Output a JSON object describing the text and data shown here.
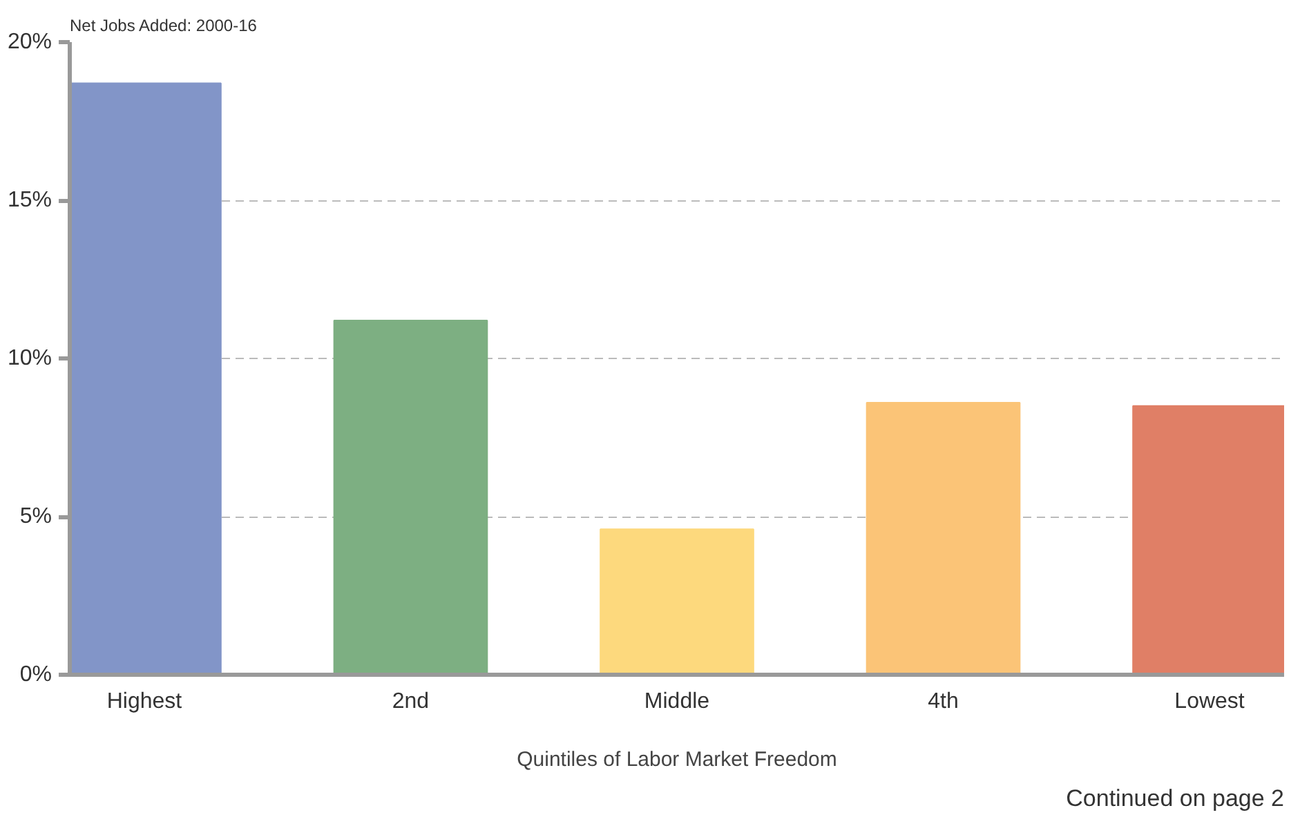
{
  "chart_data": {
    "type": "bar",
    "title": "Net Jobs Added: 2000-16",
    "xlabel": "Quintiles of Labor Market Freedom",
    "categories": [
      "Highest",
      "2nd",
      "Middle",
      "4th",
      "Lowest"
    ],
    "values": [
      18.7,
      11.2,
      4.6,
      8.6,
      8.5
    ],
    "colors": [
      "#8295c8",
      "#7daf82",
      "#fdd97d",
      "#fbc477",
      "#e07f66"
    ],
    "ylim": [
      0,
      20
    ],
    "yticks": [
      {
        "value": 0,
        "label": "0%"
      },
      {
        "value": 5,
        "label": "5%"
      },
      {
        "value": 10,
        "label": "10%"
      },
      {
        "value": 15,
        "label": "15%"
      },
      {
        "value": 20,
        "label": "20%"
      }
    ],
    "grid": "y",
    "annotations": [
      "Continued on page 2"
    ]
  }
}
